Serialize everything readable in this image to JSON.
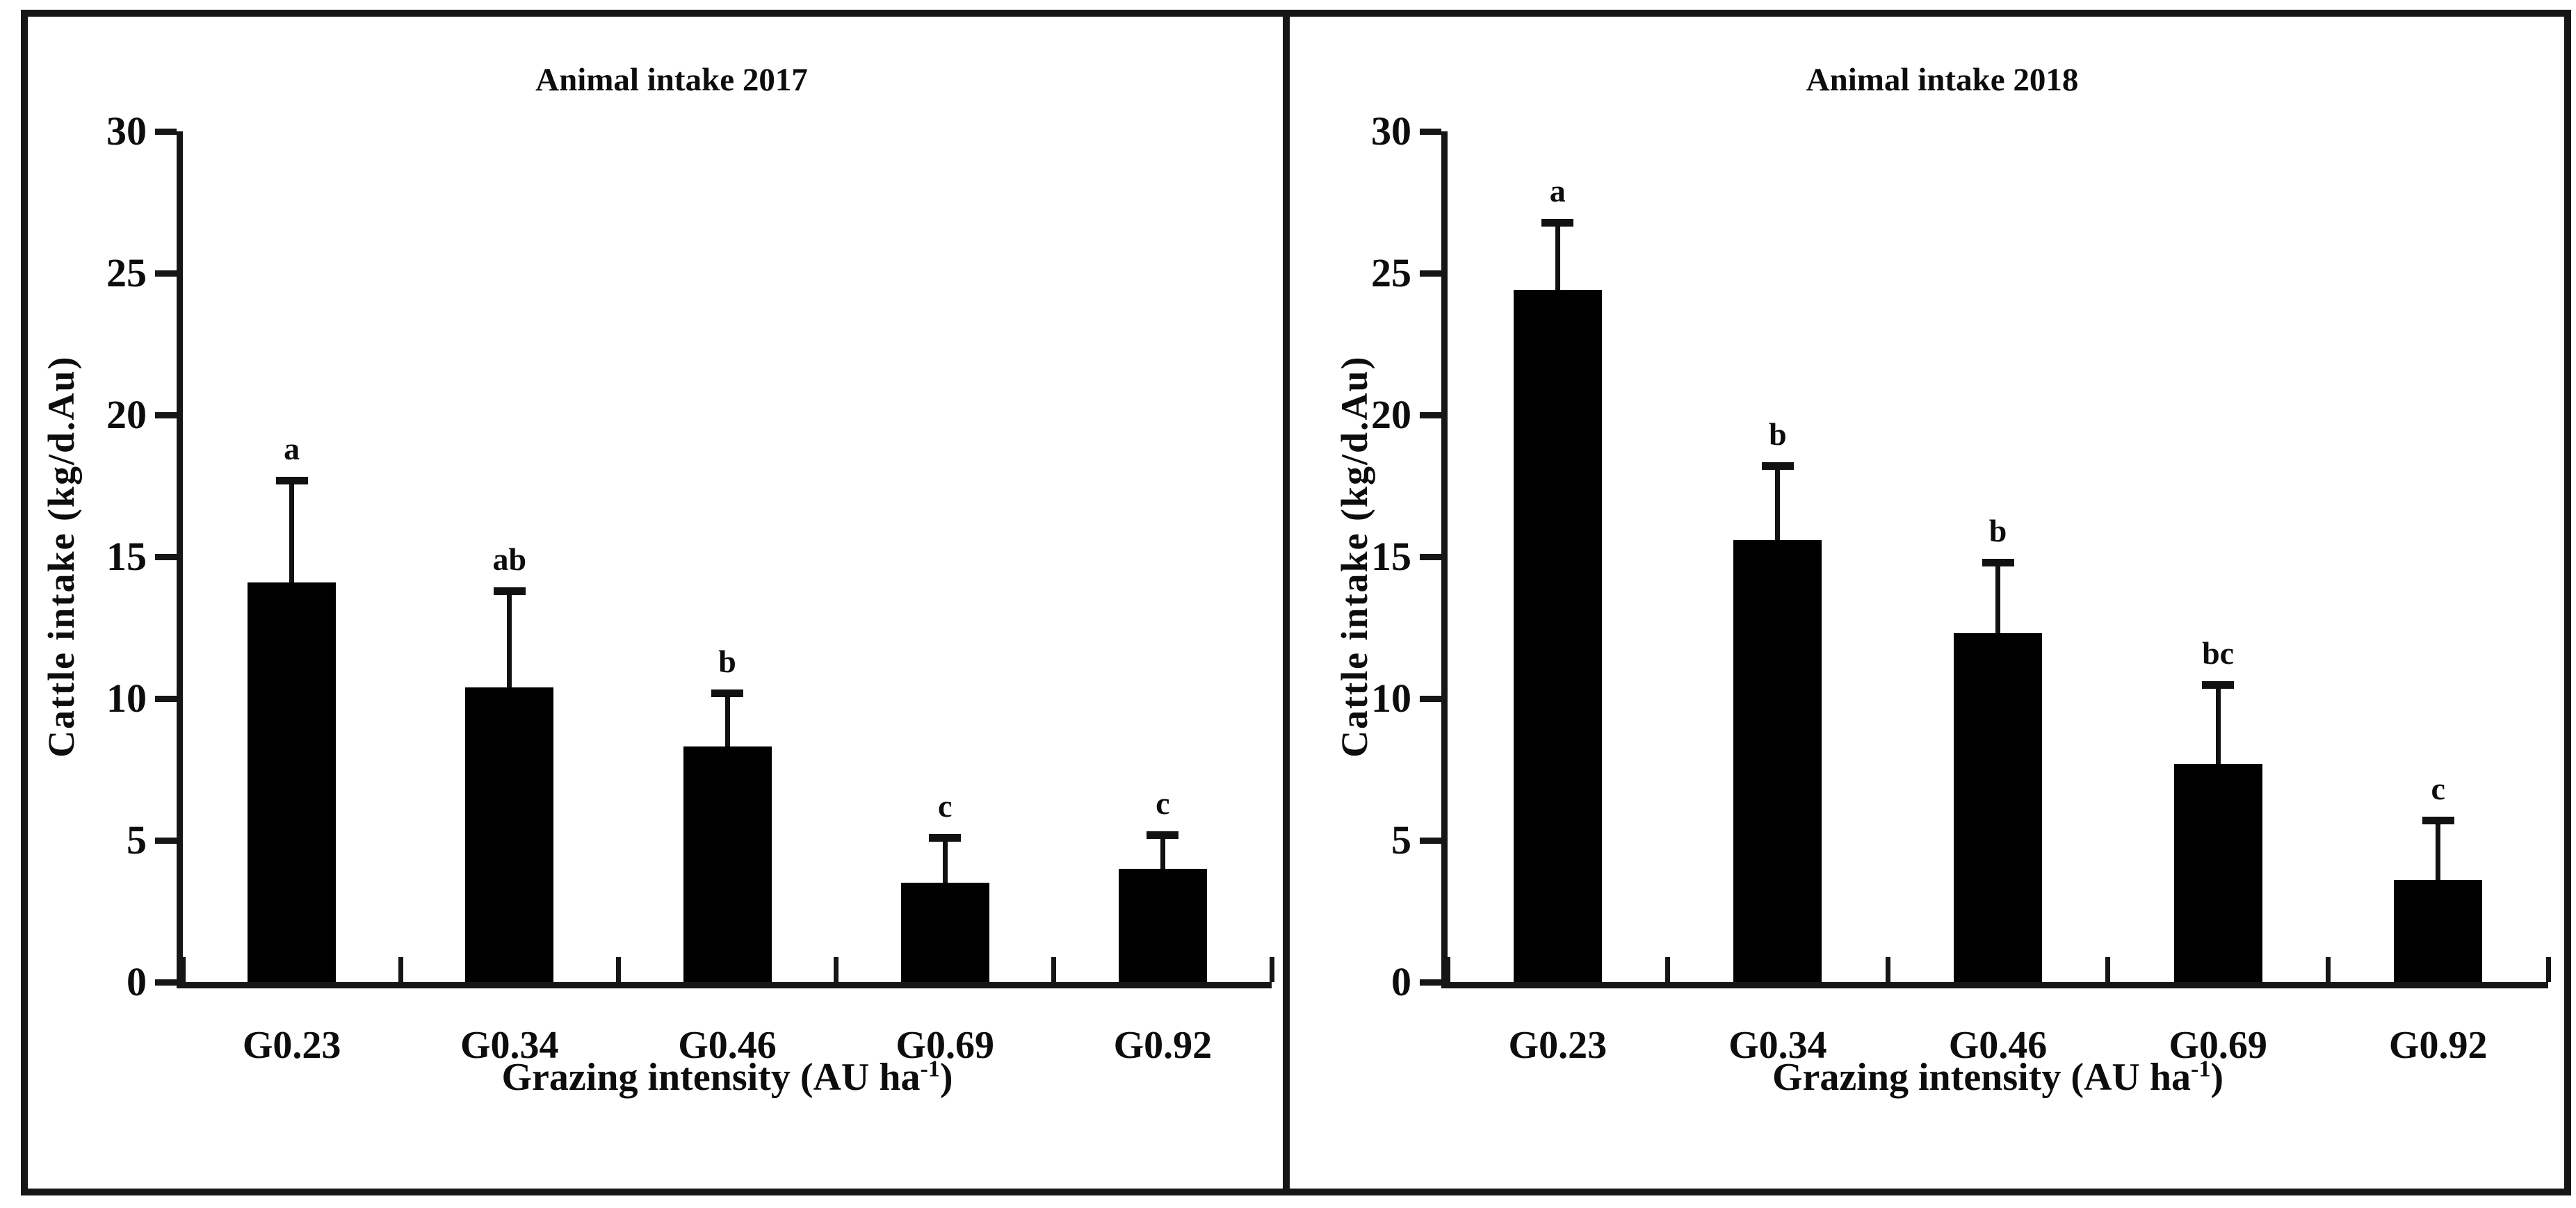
{
  "figure": {
    "panels": [
      {
        "title": "Animal intake 2017",
        "ylabel": "Cattle intake (kg/d.Au)",
        "xlabel_pre": "Grazing intensity (AU ha",
        "xlabel_sup": "-1",
        "xlabel_post": ")"
      },
      {
        "title": "Animal intake 2018",
        "ylabel": "Cattle intake (kg/d.Au)",
        "xlabel_pre": "Grazing intensity (AU ha",
        "xlabel_sup": "-1",
        "xlabel_post": ")"
      }
    ]
  },
  "chart_data": [
    {
      "type": "bar",
      "title": "Animal intake 2017",
      "xlabel": "Grazing intensity (AU ha⁻¹)",
      "ylabel": "Cattle intake (kg/d.Au)",
      "categories": [
        "G0.23",
        "G0.34",
        "G0.46",
        "G0.69",
        "G0.92"
      ],
      "values": [
        14.1,
        10.4,
        8.3,
        3.5,
        4.0
      ],
      "errors_plus": [
        3.6,
        3.4,
        1.9,
        1.6,
        1.2
      ],
      "sig_letters": [
        "a",
        "ab",
        "b",
        "c",
        "c"
      ],
      "ylim": [
        0,
        30
      ],
      "yticks": [
        0,
        5,
        10,
        15,
        20,
        25,
        30
      ],
      "bar_color": "#000000",
      "grid": false,
      "legend": false
    },
    {
      "type": "bar",
      "title": "Animal intake 2018",
      "xlabel": "Grazing intensity (AU ha⁻¹)",
      "ylabel": "Cattle intake (kg/d.Au)",
      "categories": [
        "G0.23",
        "G0.34",
        "G0.46",
        "G0.69",
        "G0.92"
      ],
      "values": [
        24.4,
        15.6,
        12.3,
        7.7,
        3.6
      ],
      "errors_plus": [
        2.4,
        2.6,
        2.5,
        2.8,
        2.1
      ],
      "sig_letters": [
        "a",
        "b",
        "b",
        "bc",
        "c"
      ],
      "ylim": [
        0,
        30
      ],
      "yticks": [
        0,
        5,
        10,
        15,
        20,
        25,
        30
      ],
      "bar_color": "#000000",
      "grid": false,
      "legend": false
    }
  ]
}
